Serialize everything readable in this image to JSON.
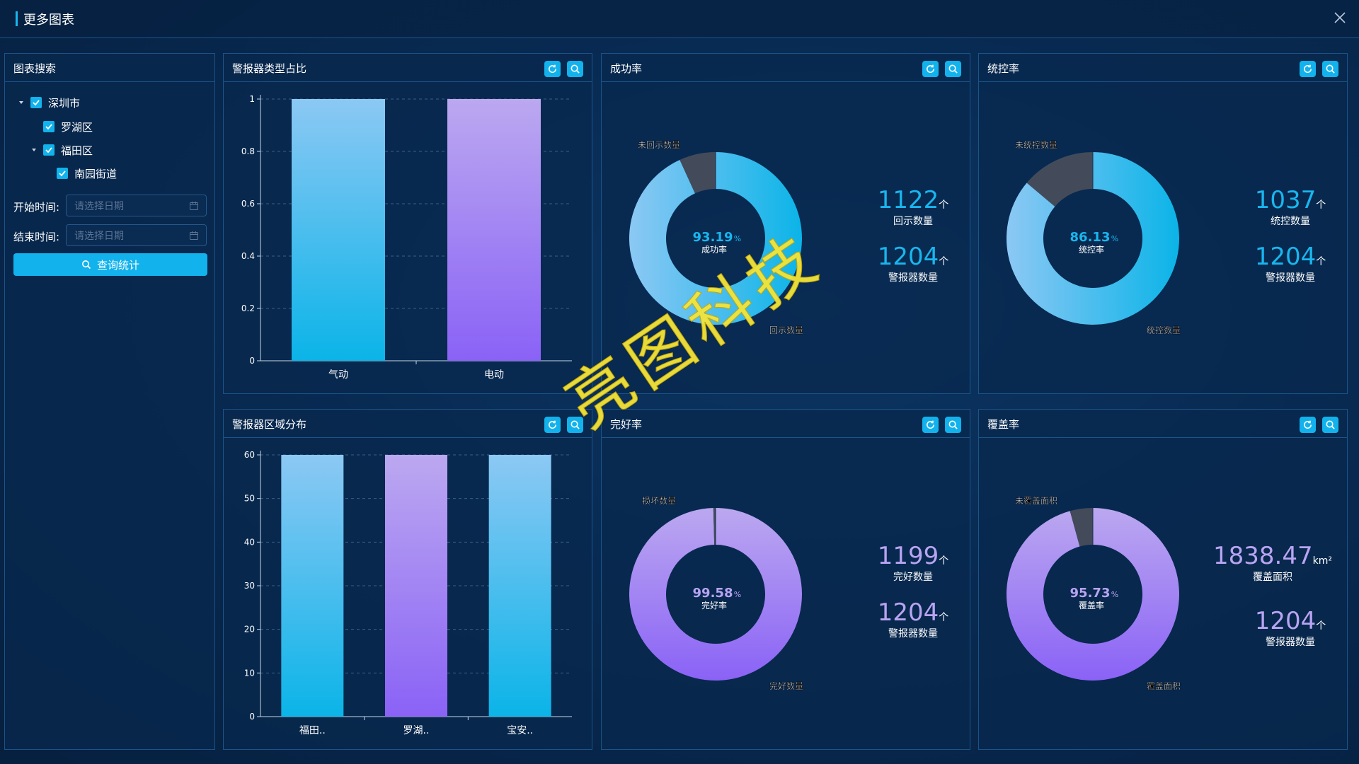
{
  "header": {
    "title": "更多图表"
  },
  "search_panel": {
    "title": "图表搜索",
    "tree": [
      {
        "label": "深圳市",
        "level": 0,
        "expanded": true,
        "checked": true
      },
      {
        "label": "罗湖区",
        "level": 1,
        "expanded": false,
        "checked": true
      },
      {
        "label": "福田区",
        "level": 1,
        "expanded": true,
        "checked": true
      },
      {
        "label": "南园街道",
        "level": 2,
        "expanded": false,
        "checked": true
      }
    ],
    "start_label": "开始时间:",
    "end_label": "结束时间:",
    "date_placeholder": "请选择日期",
    "query_button": "查询统计"
  },
  "panels": {
    "type_ratio": {
      "title": "警报器类型占比"
    },
    "region_dist": {
      "title": "警报器区域分布"
    },
    "success": {
      "title": "成功率"
    },
    "control": {
      "title": "统控率"
    },
    "intact": {
      "title": "完好率"
    },
    "coverage": {
      "title": "覆盖率"
    }
  },
  "colors": {
    "accent": "#12b2ec",
    "blue_top": "#8cc8f4",
    "blue_bottom": "#0bb4e8",
    "purple_top": "#bba8f0",
    "purple_bottom": "#8a62f6",
    "dark_slice": "#434b5a"
  },
  "chart_data": [
    {
      "id": "type_ratio",
      "type": "bar",
      "categories": [
        "气动",
        "电动"
      ],
      "values": [
        1,
        1
      ],
      "ylim": [
        0,
        1
      ],
      "yticks": [
        "0",
        "0.2",
        "0.4",
        "0.6",
        "0.8",
        "1"
      ],
      "grid": true
    },
    {
      "id": "region_dist",
      "type": "bar",
      "categories": [
        "福田..",
        "罗湖..",
        "宝安.."
      ],
      "values": [
        60,
        60,
        60
      ],
      "ylim": [
        0,
        60
      ],
      "yticks": [
        "0",
        "10",
        "20",
        "30",
        "40",
        "50",
        "60"
      ],
      "grid": true
    },
    {
      "id": "success",
      "type": "pie",
      "center_value": "93.19",
      "center_unit": "%",
      "center_label": "成功率",
      "slices": [
        {
          "label": "回示数量",
          "value": 1122
        },
        {
          "label": "未回示数量",
          "value": 82
        }
      ],
      "palette": "blue",
      "stats": [
        {
          "value": "1122",
          "unit": "个",
          "label": "回示数量"
        },
        {
          "value": "1204",
          "unit": "个",
          "label": "警报器数量"
        }
      ]
    },
    {
      "id": "control",
      "type": "pie",
      "center_value": "86.13",
      "center_unit": "%",
      "center_label": "统控率",
      "slices": [
        {
          "label": "统控数量",
          "value": 1037
        },
        {
          "label": "未统控数量",
          "value": 167
        }
      ],
      "palette": "blue",
      "stats": [
        {
          "value": "1037",
          "unit": "个",
          "label": "统控数量"
        },
        {
          "value": "1204",
          "unit": "个",
          "label": "警报器数量"
        }
      ]
    },
    {
      "id": "intact",
      "type": "pie",
      "center_value": "99.58",
      "center_unit": "%",
      "center_label": "完好率",
      "slices": [
        {
          "label": "完好数量",
          "value": 1199
        },
        {
          "label": "损坏数量",
          "value": 5
        }
      ],
      "palette": "purple",
      "stats": [
        {
          "value": "1199",
          "unit": "个",
          "label": "完好数量"
        },
        {
          "value": "1204",
          "unit": "个",
          "label": "警报器数量"
        }
      ]
    },
    {
      "id": "coverage",
      "type": "pie",
      "center_value": "95.73",
      "center_unit": "%",
      "center_label": "覆盖率",
      "slices": [
        {
          "label": "覆盖面积",
          "value": 95.73
        },
        {
          "label": "未覆盖面积",
          "value": 4.27
        }
      ],
      "palette": "purple",
      "stats": [
        {
          "value": "1838.47",
          "unit": "km²",
          "label": "覆盖面积"
        },
        {
          "value": "1204",
          "unit": "个",
          "label": "警报器数量"
        }
      ]
    }
  ],
  "watermark": "亮图科技"
}
